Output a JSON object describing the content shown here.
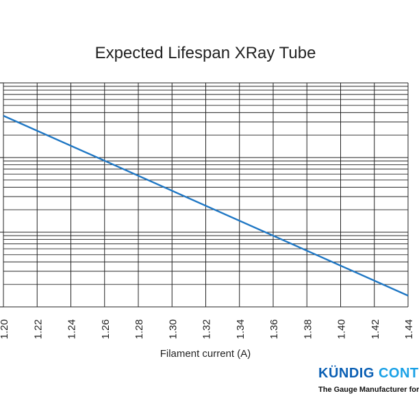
{
  "chart_data": {
    "type": "line",
    "title": "Expected Lifespan XRay Tube",
    "xlabel": "Filament current (A)",
    "ylabel": "",
    "xlim": [
      1.2,
      1.44
    ],
    "x_ticks": [
      "1.20",
      "1.22",
      "1.24",
      "1.26",
      "1.28",
      "1.30",
      "1.32",
      "1.34",
      "1.36",
      "1.38",
      "1.40",
      "1.42",
      "1.44"
    ],
    "y_scale": "log",
    "y_decades": 3,
    "grid": true,
    "line_color": "#1f77c4",
    "series": [
      {
        "x": [
          1.2,
          1.44
        ],
        "y_decade_position": [
          2.56,
          0.15
        ]
      }
    ]
  },
  "logo": {
    "name_part1": "KÜNDIG",
    "name_part2": "CONT",
    "tagline": "The Gauge Manufacturer for"
  }
}
